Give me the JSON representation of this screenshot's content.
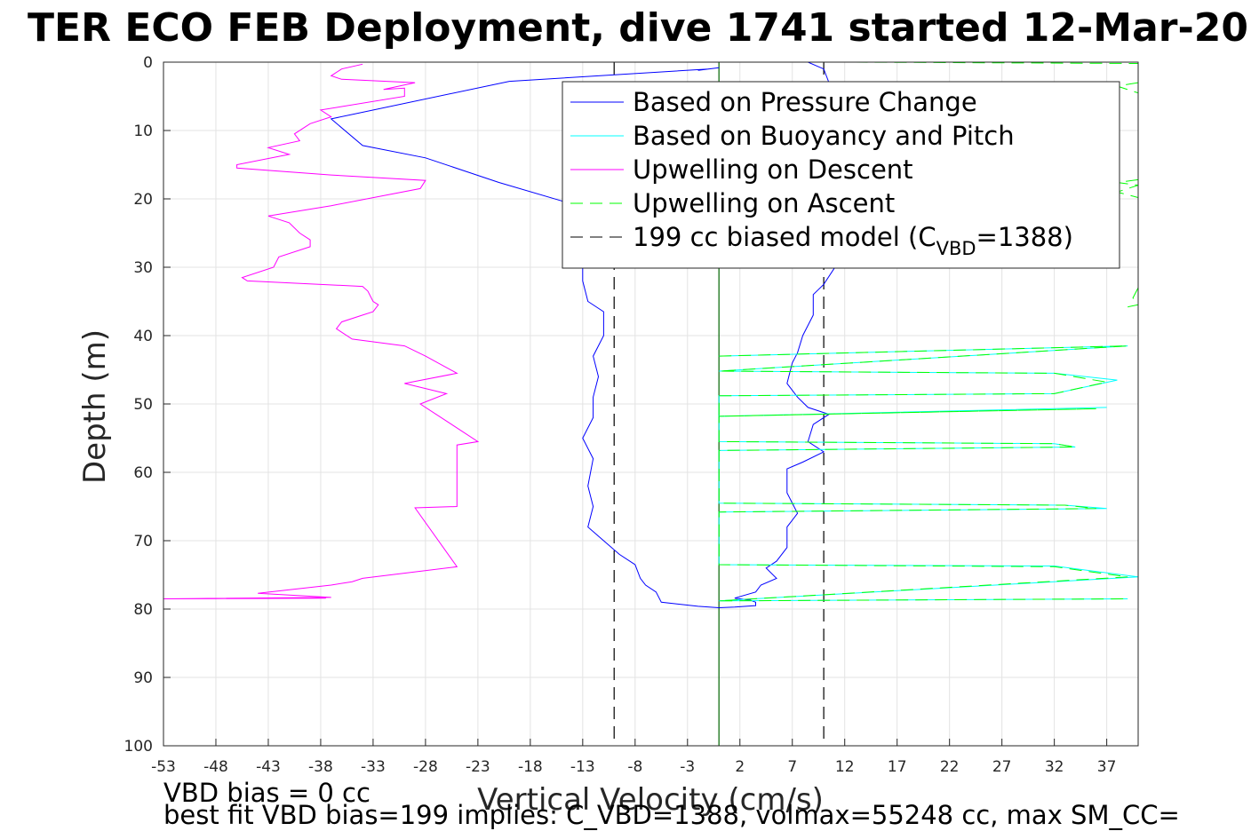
{
  "chart_data": {
    "type": "line",
    "title": "TER ECO FEB Deployment, dive 1741 started 12-Mar-20",
    "xlabel": "Vertical Velocity (cm/s)",
    "ylabel": "Depth (m)",
    "xlim": [
      -53,
      40
    ],
    "ylim": [
      100,
      0
    ],
    "x_ticks": [
      -53,
      -48,
      -43,
      -38,
      -33,
      -28,
      -23,
      -18,
      -13,
      -8,
      -3,
      2,
      7,
      12,
      17,
      22,
      27,
      32,
      37
    ],
    "y_ticks": [
      0,
      10,
      20,
      30,
      40,
      50,
      60,
      70,
      80,
      90,
      100
    ],
    "grid": true,
    "legend_position": "top-right",
    "legend": [
      {
        "label": "Based on Pressure Change",
        "color": "#0000ff",
        "style": "solid"
      },
      {
        "label": "Based on Buoyancy and Pitch",
        "color": "#00ffff",
        "style": "solid"
      },
      {
        "label": "Upwelling on Descent",
        "color": "#ff00ff",
        "style": "solid"
      },
      {
        "label": "Upwelling on Ascent",
        "color": "#00ff00",
        "style": "dashed"
      },
      {
        "label": "199 cc biased model (C",
        "sub": "VBD",
        "suffix": "=1388)",
        "color": "#000000",
        "style": "dashed"
      }
    ],
    "reference_lines": [
      {
        "x": 0,
        "color": "#006400",
        "style": "solid"
      },
      {
        "x": -10,
        "color": "#000000",
        "style": "dashed"
      },
      {
        "x": 10,
        "color": "#000000",
        "style": "dashed"
      }
    ],
    "series": [
      {
        "name": "Based on Pressure Change",
        "color": "#0000ff",
        "style": "solid",
        "points": [
          [
            0,
            0.8
          ],
          [
            -2,
            1.2
          ],
          [
            -1,
            1.0
          ],
          [
            -20,
            2.8
          ],
          [
            -37,
            8.3
          ],
          [
            -34,
            12.2
          ],
          [
            -28,
            14.0
          ],
          [
            -21,
            17.6
          ],
          [
            -15,
            20.3
          ],
          [
            -13,
            22.0
          ],
          [
            -13,
            32.0
          ],
          [
            -12.5,
            35.0
          ],
          [
            -11,
            36.5
          ],
          [
            -11,
            40.0
          ],
          [
            -12,
            43.0
          ],
          [
            -11.5,
            46.0
          ],
          [
            -12,
            49.0
          ],
          [
            -12,
            52.0
          ],
          [
            -13,
            55.0
          ],
          [
            -12,
            58.0
          ],
          [
            -12.5,
            62.0
          ],
          [
            -12,
            65.0
          ],
          [
            -12.5,
            68.0
          ],
          [
            -11,
            70.0
          ],
          [
            -9.5,
            72.0
          ],
          [
            -8,
            73.5
          ],
          [
            -7.5,
            75.5
          ],
          [
            -7,
            76.5
          ],
          [
            -6,
            77.5
          ],
          [
            -5.5,
            79.0
          ],
          [
            -2,
            79.6
          ],
          [
            0,
            79.8
          ]
        ]
      },
      {
        "name": "Based on Pressure Change",
        "color": "#0000ff",
        "style": "solid",
        "points": [
          [
            8.5,
            0.0
          ],
          [
            10,
            1.0
          ],
          [
            10.5,
            3.0
          ],
          [
            10,
            6.0
          ],
          [
            10.5,
            15.0
          ],
          [
            10.5,
            25.0
          ],
          [
            11.5,
            29.0
          ],
          [
            10,
            32.5
          ],
          [
            9,
            34.0
          ],
          [
            9,
            37.0
          ],
          [
            8,
            40.0
          ],
          [
            7.5,
            42.5
          ],
          [
            7,
            44.0
          ],
          [
            6.5,
            47.0
          ],
          [
            7.5,
            49.0
          ],
          [
            8.5,
            50.5
          ],
          [
            10.5,
            51.5
          ],
          [
            9,
            53.0
          ],
          [
            8.5,
            55.5
          ],
          [
            10,
            57.0
          ],
          [
            8,
            58.5
          ],
          [
            6.5,
            59.5
          ],
          [
            6.5,
            61.0
          ],
          [
            6.5,
            63.0
          ],
          [
            7.5,
            66.0
          ],
          [
            6.5,
            68.0
          ],
          [
            6.5,
            71.0
          ],
          [
            5.5,
            73.0
          ],
          [
            4.5,
            74.0
          ],
          [
            5.5,
            75.5
          ],
          [
            4,
            76.5
          ],
          [
            3.5,
            77.5
          ],
          [
            1.5,
            78.4
          ],
          [
            3,
            78.7
          ],
          [
            3.5,
            79.0
          ],
          [
            3.5,
            79.5
          ],
          [
            1.5,
            79.7
          ],
          [
            0,
            79.8
          ]
        ]
      },
      {
        "name": "Upwelling on Descent",
        "color": "#ff00ff",
        "style": "solid",
        "points": [
          [
            -34,
            0.3
          ],
          [
            -36,
            1.0
          ],
          [
            -37,
            2.0
          ],
          [
            -36,
            2.5
          ],
          [
            -29,
            3.0
          ],
          [
            -32,
            4.0
          ],
          [
            -30,
            3.8
          ],
          [
            -30,
            5.0
          ],
          [
            -38,
            7.0
          ],
          [
            -37,
            8.0
          ],
          [
            -39,
            9.0
          ],
          [
            -40.5,
            10.5
          ],
          [
            -40,
            11.5
          ],
          [
            -43,
            12.5
          ],
          [
            -41,
            13.5
          ],
          [
            -46,
            15.0
          ],
          [
            -46,
            15.5
          ],
          [
            -37,
            16.5
          ],
          [
            -28,
            17.3
          ],
          [
            -28.5,
            18.5
          ],
          [
            -37,
            21.0
          ],
          [
            -43,
            22.5
          ],
          [
            -41,
            23.5
          ],
          [
            -40,
            25.0
          ],
          [
            -39,
            26.0
          ],
          [
            -39,
            27.0
          ],
          [
            -42,
            28.5
          ],
          [
            -42.5,
            30.0
          ],
          [
            -45.5,
            31.5
          ],
          [
            -45,
            32.0
          ],
          [
            -34,
            32.8
          ],
          [
            -33.5,
            33.5
          ],
          [
            -33,
            35.0
          ],
          [
            -32.5,
            35.5
          ],
          [
            -33,
            36.5
          ],
          [
            -34,
            37.0
          ],
          [
            -36,
            38.0
          ],
          [
            -36.5,
            39.0
          ],
          [
            -35,
            40.5
          ],
          [
            -30,
            41.5
          ],
          [
            -28,
            43.0
          ],
          [
            -25,
            45.5
          ],
          [
            -30,
            47.0
          ],
          [
            -26,
            48.5
          ],
          [
            -28.5,
            50.0
          ],
          [
            -23,
            55.5
          ],
          [
            -25,
            56.0
          ],
          [
            -25,
            65.0
          ],
          [
            -29,
            65.2
          ],
          [
            -25,
            73.8
          ],
          [
            -34,
            75.5
          ],
          [
            -35,
            76.0
          ],
          [
            -37,
            76.5
          ],
          [
            -44,
            77.7
          ],
          [
            -37,
            78.3
          ],
          [
            -53,
            78.5
          ],
          [
            -37.5,
            78.4
          ]
        ]
      },
      {
        "name": "Based on Buoyancy and Pitch",
        "color": "#00ffff",
        "style": "solid",
        "points": [
          [
            0,
            43.0
          ],
          [
            39,
            41.5
          ],
          [
            0,
            45.2
          ],
          [
            32,
            45.5
          ],
          [
            38,
            46.5
          ],
          [
            32,
            48.5
          ],
          [
            0,
            48.8
          ],
          [
            0,
            51.8
          ],
          [
            37,
            50.5
          ],
          [
            0,
            51.8
          ],
          [
            0,
            55.5
          ],
          [
            32,
            55.8
          ],
          [
            34,
            56.3
          ],
          [
            0,
            56.8
          ],
          [
            0,
            64.5
          ],
          [
            33,
            64.8
          ],
          [
            37,
            65.3
          ],
          [
            0,
            65.8
          ],
          [
            0,
            73.5
          ],
          [
            32,
            73.7
          ],
          [
            40,
            75.3
          ],
          [
            0,
            78.8
          ],
          [
            39,
            78.5
          ]
        ]
      },
      {
        "name": "Upwelling on Ascent",
        "color": "#00ff00",
        "style": "dashed",
        "points": [
          [
            0,
            43.0
          ],
          [
            39,
            41.5
          ],
          [
            0,
            45.2
          ],
          [
            32,
            45.5
          ],
          [
            37,
            46.8
          ],
          [
            32,
            48.5
          ],
          [
            0,
            48.8
          ],
          [
            0,
            51.8
          ],
          [
            36,
            50.7
          ],
          [
            0,
            51.8
          ],
          [
            0,
            55.5
          ],
          [
            32,
            55.8
          ],
          [
            34,
            56.3
          ],
          [
            0,
            56.8
          ],
          [
            0,
            64.5
          ],
          [
            33,
            64.8
          ],
          [
            36,
            65.3
          ],
          [
            0,
            65.8
          ],
          [
            0,
            73.5
          ],
          [
            32,
            73.8
          ],
          [
            39,
            75.3
          ],
          [
            0,
            78.8
          ],
          [
            39,
            78.5
          ]
        ]
      },
      {
        "name": "Upwelling on Ascent",
        "color": "#00ff00",
        "style": "dashed",
        "points": [
          [
            13,
            0.0
          ],
          [
            40,
            0.2
          ]
        ]
      },
      {
        "name": "Upwelling on Ascent",
        "color": "#00ff00",
        "style": "dashed",
        "points": [
          [
            40,
            3.0
          ],
          [
            38,
            3.5
          ],
          [
            40,
            4.5
          ]
        ]
      },
      {
        "name": "Upwelling on Ascent",
        "color": "#00ff00",
        "style": "dashed",
        "points": [
          [
            40,
            17.2
          ],
          [
            38,
            17.6
          ],
          [
            40,
            18.0
          ],
          [
            38,
            19.0
          ],
          [
            40,
            19.8
          ]
        ]
      },
      {
        "name": "Upwelling on Ascent",
        "color": "#00ff00",
        "style": "dashed",
        "points": [
          [
            40,
            33.0
          ],
          [
            39.5,
            34.5
          ],
          [
            40,
            35.5
          ],
          [
            39,
            35.8
          ]
        ]
      }
    ]
  },
  "footer": {
    "line1": "VBD bias = 0 cc",
    "line2": "best fit VBD bias=199 implies: C_VBD=1388, volmax=55248 cc, max SM_CC="
  }
}
